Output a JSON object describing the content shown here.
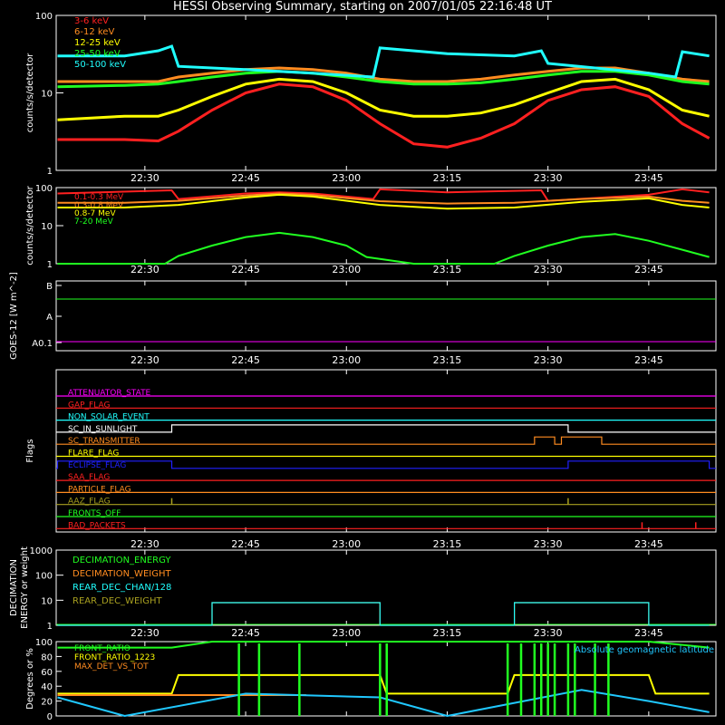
{
  "title": "HESSI Observing Summary, starting on 2007/01/05 22:16:48 UT",
  "time_ticks": [
    "22:30",
    "22:45",
    "23:00",
    "23:15",
    "23:30",
    "23:45"
  ],
  "chart_data": [
    {
      "type": "line",
      "ylabel": "counts/s/detector",
      "yscale": "log",
      "ylim": [
        1,
        100
      ],
      "yticks": [
        "1",
        "10",
        "100"
      ],
      "series": [
        {
          "name": "3-6 keV",
          "color": "#ff2020",
          "x": [
            "22:17",
            "22:27",
            "22:32",
            "22:35",
            "22:40",
            "22:45",
            "22:50",
            "22:55",
            "23:00",
            "23:05",
            "23:10",
            "23:15",
            "23:20",
            "23:25",
            "23:30",
            "23:35",
            "23:40",
            "23:45",
            "23:50",
            "23:54"
          ],
          "values": [
            2.5,
            2.5,
            2.4,
            3.2,
            6,
            10,
            13,
            12,
            8,
            4,
            2.2,
            2,
            2.6,
            4,
            8,
            11,
            12,
            9,
            4,
            2.6
          ]
        },
        {
          "name": "6-12 keV",
          "color": "#ff8c20",
          "x": [
            "22:17",
            "22:27",
            "22:32",
            "22:35",
            "22:40",
            "22:45",
            "22:50",
            "22:55",
            "23:00",
            "23:05",
            "23:10",
            "23:15",
            "23:20",
            "23:25",
            "23:30",
            "23:35",
            "23:40",
            "23:45",
            "23:50",
            "23:54"
          ],
          "values": [
            14,
            14,
            14,
            16,
            18,
            20,
            21,
            20,
            18,
            15,
            14,
            14,
            15,
            17,
            19,
            21,
            21,
            18,
            15,
            14
          ]
        },
        {
          "name": "12-25 keV",
          "color": "#ffff00",
          "x": [
            "22:17",
            "22:27",
            "22:32",
            "22:35",
            "22:40",
            "22:45",
            "22:50",
            "22:55",
            "23:00",
            "23:05",
            "23:10",
            "23:15",
            "23:20",
            "23:25",
            "23:30",
            "23:35",
            "23:40",
            "23:45",
            "23:50",
            "23:54"
          ],
          "values": [
            4.5,
            5,
            5,
            6,
            9,
            13,
            15,
            14,
            10,
            6,
            5,
            5,
            5.5,
            7,
            10,
            14,
            15,
            11,
            6,
            5
          ]
        },
        {
          "name": "25-50 keV",
          "color": "#20ff20",
          "x": [
            "22:17",
            "22:27",
            "22:32",
            "22:35",
            "22:40",
            "22:45",
            "22:50",
            "22:55",
            "23:00",
            "23:05",
            "23:10",
            "23:15",
            "23:20",
            "23:25",
            "23:30",
            "23:35",
            "23:40",
            "23:45",
            "23:50",
            "23:54"
          ],
          "values": [
            12,
            12.5,
            13,
            14,
            16,
            18,
            19,
            18,
            16,
            14,
            13,
            13,
            13.5,
            15,
            17,
            19,
            19,
            17,
            14,
            13
          ]
        },
        {
          "name": "50-100 keV",
          "color": "#20ffff",
          "x": [
            "22:17",
            "22:27",
            "22:32",
            "22:34",
            "22:35",
            "22:45",
            "22:55",
            "23:04",
            "23:05",
            "23:15",
            "23:25",
            "23:29",
            "23:30",
            "23:45",
            "23:49",
            "23:50",
            "23:54"
          ],
          "values": [
            30,
            30,
            35,
            40,
            22,
            20,
            18,
            16,
            38,
            32,
            30,
            35,
            24,
            18,
            16,
            34,
            30
          ]
        }
      ]
    },
    {
      "type": "line",
      "ylabel": "counts/s/detector",
      "yscale": "log",
      "ylim": [
        1,
        100
      ],
      "yticks": [
        "1",
        "10",
        "100"
      ],
      "series": [
        {
          "name": "0.1-0.3 MeV",
          "color": "#ff2020",
          "x": [
            "22:17",
            "22:34",
            "22:35",
            "22:45",
            "22:50",
            "22:55",
            "23:04",
            "23:05",
            "23:15",
            "23:29",
            "23:30",
            "23:45",
            "23:50",
            "23:54"
          ],
          "values": [
            70,
            85,
            50,
            70,
            75,
            70,
            50,
            90,
            75,
            85,
            45,
            65,
            90,
            75
          ]
        },
        {
          "name": "0.3-0.8 MeV",
          "color": "#ff8c20",
          "x": [
            "22:17",
            "22:27",
            "22:35",
            "22:45",
            "22:50",
            "22:55",
            "23:05",
            "23:15",
            "23:25",
            "23:35",
            "23:45",
            "23:50",
            "23:54"
          ],
          "values": [
            40,
            40,
            45,
            62,
            70,
            64,
            44,
            38,
            40,
            50,
            58,
            45,
            40
          ]
        },
        {
          "name": "0.8-7 MeV",
          "color": "#ffff00",
          "x": [
            "22:17",
            "22:27",
            "22:35",
            "22:45",
            "22:50",
            "22:55",
            "23:05",
            "23:15",
            "23:25",
            "23:35",
            "23:45",
            "23:50",
            "23:54"
          ],
          "values": [
            30,
            30,
            35,
            55,
            65,
            58,
            35,
            28,
            30,
            42,
            52,
            35,
            30
          ]
        },
        {
          "name": "7-20 MeV",
          "color": "#20ff20",
          "x": [
            "22:17",
            "22:33",
            "22:35",
            "22:40",
            "22:45",
            "22:50",
            "22:55",
            "23:00",
            "23:03",
            "23:10",
            "23:22",
            "23:25",
            "23:30",
            "23:35",
            "23:40",
            "23:45",
            "23:54"
          ],
          "values": [
            1,
            1,
            1.6,
            3,
            5,
            6.5,
            5,
            3,
            1.5,
            1,
            1,
            1.6,
            3,
            5,
            6,
            4,
            1.5
          ]
        }
      ]
    },
    {
      "type": "line",
      "ylabel": "GOES-12 [W m^-2]",
      "yticks": [
        "A0.1",
        "A",
        "B"
      ],
      "series": [
        {
          "name": "GOES long",
          "color": "#20ff20",
          "x": [
            "22:17",
            "23:54"
          ],
          "values": [
            1.1e-07,
            1.1e-07
          ]
        },
        {
          "name": "GOES short",
          "color": "#ff00ff",
          "x": [
            "22:17",
            "23:54"
          ],
          "values": [
            1e-09,
            1e-09
          ]
        }
      ]
    },
    {
      "type": "flags",
      "ylabel": "Flags",
      "series": [
        {
          "name": "ATTENUATOR_STATE",
          "color": "#ff00ff",
          "values": []
        },
        {
          "name": "GAP_FLAG",
          "color": "#ff2020",
          "values": []
        },
        {
          "name": "NON_SOLAR_EVENT",
          "color": "#20ffff",
          "values": []
        },
        {
          "name": "SC_IN_SUNLIGHT",
          "color": "#ffffff",
          "on": [
            [
              "22:34",
              "23:33"
            ]
          ]
        },
        {
          "name": "SC_TRANSMITTER",
          "color": "#ff8c20",
          "on": [
            [
              "23:28",
              "23:31"
            ],
            [
              "23:32",
              "23:38"
            ]
          ]
        },
        {
          "name": "FLARE_FLAG",
          "color": "#ffff00",
          "values": []
        },
        {
          "name": "ECLIPSE_FLAG",
          "color": "#2020ff",
          "on": [
            [
              "22:17",
              "22:34"
            ],
            [
              "23:33",
              "23:54"
            ]
          ]
        },
        {
          "name": "SAA_FLAG",
          "color": "#ff2020",
          "values": []
        },
        {
          "name": "PARTICLE_FLAG",
          "color": "#ff8c20",
          "values": []
        },
        {
          "name": "AAZ_FLAG",
          "color": "#a8a020",
          "spikes": [
            "22:34",
            "23:33"
          ]
        },
        {
          "name": "FRONTS_OFF",
          "color": "#20ff20",
          "values": []
        },
        {
          "name": "BAD_PACKETS",
          "color": "#ff2020",
          "spikes": [
            "23:44",
            "23:52"
          ]
        }
      ]
    },
    {
      "type": "line",
      "ylabel": "DECIMATION ENERGY or weight",
      "yscale": "log",
      "ylim": [
        1,
        1000
      ],
      "yticks": [
        "1",
        "10",
        "100",
        "1000"
      ],
      "series": [
        {
          "name": "DECIMATION_ENERGY",
          "color": "#20ff20",
          "values": []
        },
        {
          "name": "DECIMATION_WEIGHT",
          "color": "#ff8c20",
          "x": [
            "22:17",
            "22:40",
            "22:40",
            "23:05",
            "23:05",
            "23:25",
            "23:25",
            "23:45",
            "23:45",
            "23:54"
          ],
          "values": [
            1,
            1,
            8,
            8,
            1,
            1,
            8,
            8,
            1,
            1
          ]
        },
        {
          "name": "REAR_DEC_CHAN/128",
          "color": "#20ffff",
          "x": [
            "22:17",
            "22:40",
            "22:40",
            "23:05",
            "23:05",
            "23:25",
            "23:25",
            "23:45",
            "23:45",
            "23:54"
          ],
          "values": [
            1,
            1,
            8,
            8,
            1,
            1,
            8,
            8,
            1,
            1
          ]
        },
        {
          "name": "REAR_DEC_WEIGHT",
          "color": "#a8a020",
          "values": []
        }
      ]
    },
    {
      "type": "line",
      "ylabel": "Degrees or %",
      "ylim": [
        0,
        100
      ],
      "yticks": [
        "0",
        "20",
        "40",
        "60",
        "80",
        "100"
      ],
      "annotation": "Absolute geomagnetic latitude",
      "series": [
        {
          "name": "FRONT_RATIO",
          "color": "#20ff20",
          "x": [
            "22:17",
            "22:34",
            "22:40",
            "23:05",
            "23:25",
            "23:45",
            "23:54"
          ],
          "values": [
            92,
            92,
            100,
            100,
            100,
            100,
            92
          ]
        },
        {
          "name": "FRONT_RATIO_1223",
          "color": "#ffff00",
          "x": [
            "22:17",
            "22:34",
            "22:35",
            "23:05",
            "23:06",
            "23:24",
            "23:25",
            "23:45",
            "23:46",
            "23:54"
          ],
          "values": [
            30,
            30,
            55,
            55,
            30,
            30,
            55,
            55,
            30,
            30
          ]
        },
        {
          "name": "MAX_DET_VS_TOT",
          "color": "#ff8c20",
          "x": [
            "22:17",
            "22:54"
          ],
          "values": [
            28,
            28
          ]
        },
        {
          "name": "Absolute geomagnetic latitude",
          "color": "#20c8ff",
          "x": [
            "22:17",
            "22:27",
            "22:45",
            "23:05",
            "23:15",
            "23:35",
            "23:45",
            "23:54"
          ],
          "values": [
            25,
            0,
            30,
            25,
            0,
            35,
            20,
            5
          ]
        }
      ]
    }
  ]
}
